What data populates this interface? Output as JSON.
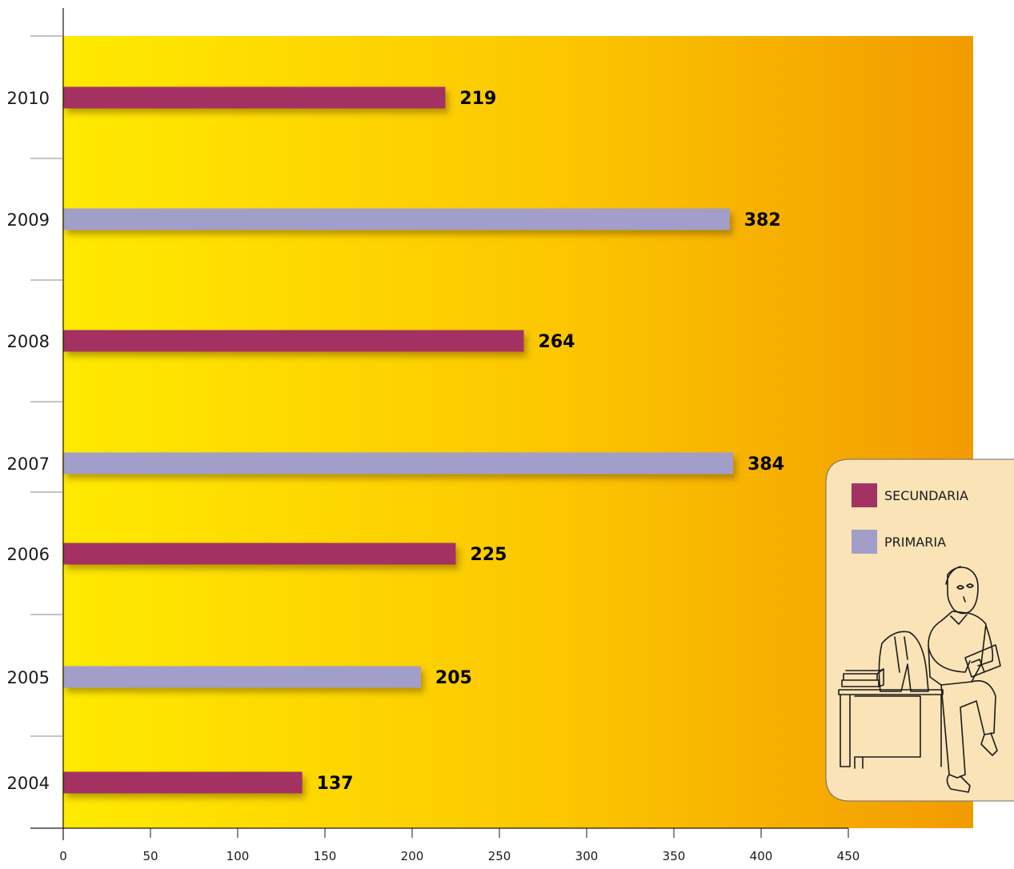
{
  "chart_data": {
    "type": "bar",
    "orientation": "horizontal",
    "categories": [
      "2010",
      "2009",
      "2008",
      "2007",
      "2006",
      "2005",
      "2004"
    ],
    "values": [
      219,
      382,
      264,
      384,
      225,
      205,
      137
    ],
    "bar_series": [
      "SECUNDARIA",
      "PRIMARIA",
      "SECUNDARIA",
      "PRIMARIA",
      "SECUNDARIA",
      "PRIMARIA",
      "SECUNDARIA"
    ],
    "series": [
      {
        "name": "SECUNDARIA",
        "color": "#a33264"
      },
      {
        "name": "PRIMARIA",
        "color": "#a19ec9"
      }
    ],
    "xticks": [
      0,
      50,
      100,
      150,
      200,
      250,
      300,
      350,
      400,
      450
    ],
    "xlim": [
      0,
      450
    ],
    "title": "",
    "xlabel": "",
    "ylabel": "",
    "grid": false,
    "legend_position": "bottom-right",
    "background_gradient": [
      "#ffea00",
      "#f29b00"
    ]
  }
}
